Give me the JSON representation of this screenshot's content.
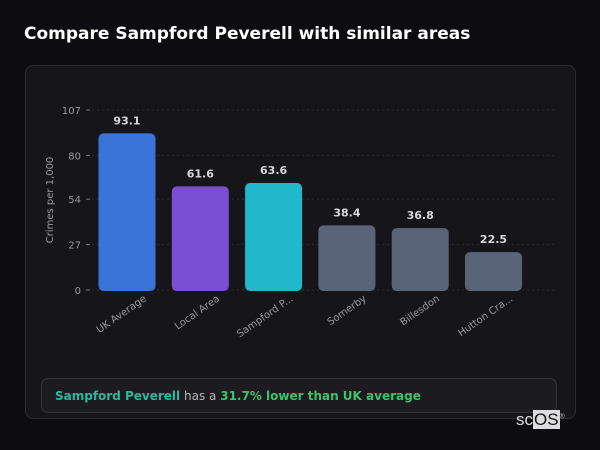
{
  "title": "Compare Sampford Peverell with similar areas",
  "chart_data": {
    "type": "bar",
    "categories": [
      "UK Average",
      "Local Area",
      "Sampford P...",
      "Somerby",
      "Billesdon",
      "Hutton Cra..."
    ],
    "values": [
      93.1,
      61.6,
      63.6,
      38.4,
      36.8,
      22.5
    ],
    "value_labels": [
      "93.1",
      "61.6",
      "63.6",
      "38.4",
      "36.8",
      "22.5"
    ],
    "colors": [
      "#3a74d8",
      "#7a4fd2",
      "#22b8cc",
      "#5a6478",
      "#5a6478",
      "#5a6478"
    ],
    "ylabel": "Crimes per 1,000",
    "yticks": [
      0,
      27,
      54,
      80,
      107
    ],
    "ylim": [
      0,
      107
    ],
    "grid": true
  },
  "summary": {
    "place": "Sampford Peverell",
    "middle": "has a",
    "comparison": "31.7% lower than UK average"
  },
  "logo": {
    "text_a": "sc",
    "text_b": "OS",
    "mark": "®"
  }
}
